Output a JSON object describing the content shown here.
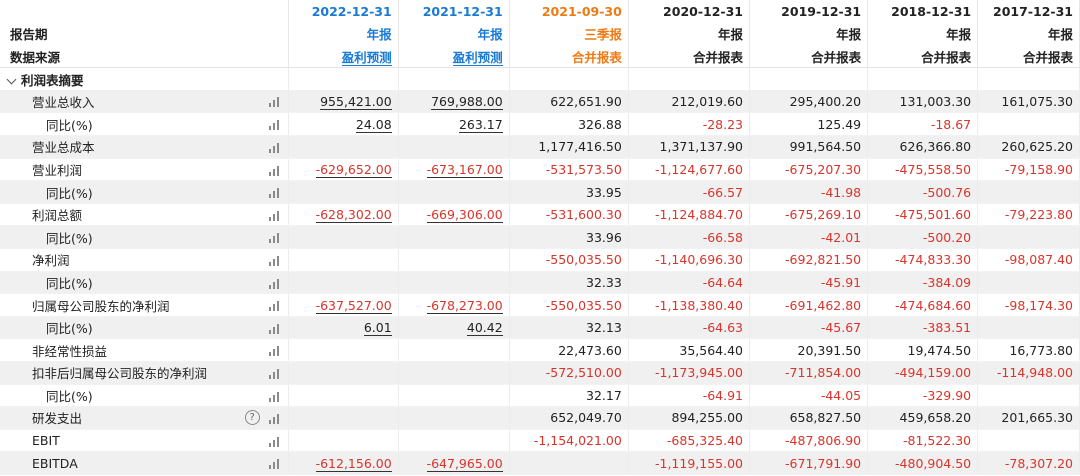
{
  "header": {
    "row1_label": "",
    "row2_label": "报告期",
    "row3_label": "数据来源",
    "columns": [
      {
        "date": "2022-12-31",
        "period": "年报",
        "source": "盈利预测",
        "style": "blue"
      },
      {
        "date": "2021-12-31",
        "period": "年报",
        "source": "盈利预测",
        "style": "blue"
      },
      {
        "date": "2021-09-30",
        "period": "三季报",
        "source": "合并报表",
        "style": "orange"
      },
      {
        "date": "2020-12-31",
        "period": "年报",
        "source": "合并报表",
        "style": "plain"
      },
      {
        "date": "2019-12-31",
        "period": "年报",
        "source": "合并报表",
        "style": "plain"
      },
      {
        "date": "2018-12-31",
        "period": "年报",
        "source": "合并报表",
        "style": "plain"
      },
      {
        "date": "2017-12-31",
        "period": "年报",
        "source": "合并报表",
        "style": "plain"
      }
    ]
  },
  "section": {
    "title": "利润表摘要"
  },
  "rows": [
    {
      "label": "营业总收入",
      "level": 1,
      "help": false,
      "values": [
        "955,421.00",
        "769,988.00",
        "622,651.90",
        "212,019.60",
        "295,400.20",
        "131,003.30",
        "161,075.30"
      ]
    },
    {
      "label": "同比(%)",
      "level": 2,
      "help": false,
      "values": [
        "24.08",
        "263.17",
        "326.88",
        "-28.23",
        "125.49",
        "-18.67",
        ""
      ]
    },
    {
      "label": "营业总成本",
      "level": 1,
      "help": false,
      "values": [
        "",
        "",
        "1,177,416.50",
        "1,371,137.90",
        "991,564.50",
        "626,366.80",
        "260,625.20"
      ]
    },
    {
      "label": "营业利润",
      "level": 1,
      "help": false,
      "values": [
        "-629,652.00",
        "-673,167.00",
        "-531,573.50",
        "-1,124,677.60",
        "-675,207.30",
        "-475,558.50",
        "-79,158.90"
      ]
    },
    {
      "label": "同比(%)",
      "level": 2,
      "help": false,
      "values": [
        "",
        "",
        "33.95",
        "-66.57",
        "-41.98",
        "-500.76",
        ""
      ]
    },
    {
      "label": "利润总额",
      "level": 1,
      "help": false,
      "values": [
        "-628,302.00",
        "-669,306.00",
        "-531,600.30",
        "-1,124,884.70",
        "-675,269.10",
        "-475,501.60",
        "-79,223.80"
      ]
    },
    {
      "label": "同比(%)",
      "level": 2,
      "help": false,
      "values": [
        "",
        "",
        "33.96",
        "-66.58",
        "-42.01",
        "-500.20",
        ""
      ]
    },
    {
      "label": "净利润",
      "level": 1,
      "help": false,
      "values": [
        "",
        "",
        "-550,035.50",
        "-1,140,696.30",
        "-692,821.50",
        "-474,833.30",
        "-98,087.40"
      ]
    },
    {
      "label": "同比(%)",
      "level": 2,
      "help": false,
      "values": [
        "",
        "",
        "32.33",
        "-64.64",
        "-45.91",
        "-384.09",
        ""
      ]
    },
    {
      "label": "归属母公司股东的净利润",
      "level": 1,
      "help": false,
      "values": [
        "-637,527.00",
        "-678,273.00",
        "-550,035.50",
        "-1,138,380.40",
        "-691,462.80",
        "-474,684.60",
        "-98,174.30"
      ]
    },
    {
      "label": "同比(%)",
      "level": 2,
      "help": false,
      "values": [
        "6.01",
        "40.42",
        "32.13",
        "-64.63",
        "-45.67",
        "-383.51",
        ""
      ]
    },
    {
      "label": "非经常性损益",
      "level": 1,
      "help": false,
      "values": [
        "",
        "",
        "22,473.60",
        "35,564.40",
        "20,391.50",
        "19,474.50",
        "16,773.80"
      ]
    },
    {
      "label": "扣非后归属母公司股东的净利润",
      "level": 1,
      "help": false,
      "values": [
        "",
        "",
        "-572,510.00",
        "-1,173,945.00",
        "-711,854.00",
        "-494,159.00",
        "-114,948.00"
      ]
    },
    {
      "label": "同比(%)",
      "level": 2,
      "help": false,
      "values": [
        "",
        "",
        "32.17",
        "-64.91",
        "-44.05",
        "-329.90",
        ""
      ]
    },
    {
      "label": "研发支出",
      "level": 1,
      "help": true,
      "values": [
        "",
        "",
        "652,049.70",
        "894,255.00",
        "658,827.50",
        "459,658.20",
        "201,665.30"
      ]
    },
    {
      "label": "EBIT",
      "level": 1,
      "help": false,
      "values": [
        "",
        "",
        "-1,154,021.00",
        "-685,325.40",
        "-487,806.90",
        "-81,522.30",
        ""
      ]
    },
    {
      "label": "EBITDA",
      "level": 1,
      "help": false,
      "values": [
        "-612,156.00",
        "-647,965.00",
        "",
        "-1,119,155.00",
        "-671,791.90",
        "-480,904.50",
        "-78,307.20"
      ]
    }
  ],
  "help_glyph": "?",
  "icons": {
    "chart": "bar-chart-icon",
    "help": "help-circle-icon",
    "collapse": "chevron-down-icon"
  },
  "colors": {
    "forecast": "#1a7ad4",
    "quarter": "#ee7a14",
    "negative": "#d9342b",
    "shade": "#f0f0f0"
  }
}
